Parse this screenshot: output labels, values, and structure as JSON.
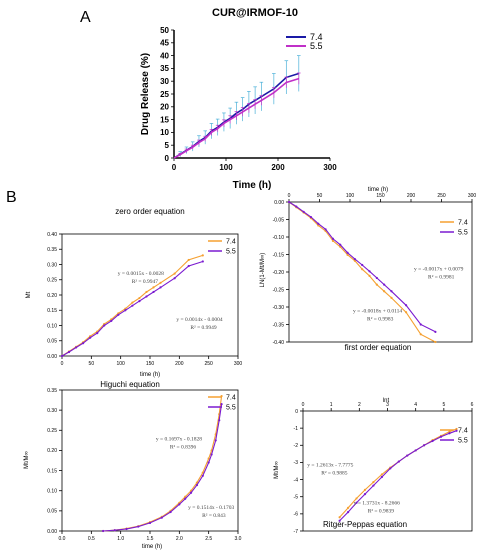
{
  "figure": {
    "label_a": "A",
    "label_b": "B"
  },
  "chart_data": [
    {
      "type": "line",
      "title": "CUR@IRMOF-10",
      "xlabel": "Time (h)",
      "ylabel": "Drug Release (%)",
      "xlim": [
        0,
        300
      ],
      "ylim": [
        0,
        50
      ],
      "xticks": [
        0,
        100,
        200,
        300
      ],
      "yticks": [
        0,
        5,
        10,
        15,
        20,
        25,
        30,
        35,
        40,
        45,
        50
      ],
      "error_bars": true,
      "legend": "top-right",
      "series": [
        {
          "name": "7.4",
          "color": "#1a1aa6",
          "x": [
            0,
            12,
            24,
            36,
            48,
            60,
            72,
            84,
            96,
            108,
            120,
            132,
            144,
            156,
            168,
            192,
            216,
            240
          ],
          "y": [
            0,
            1.5,
            3,
            4.5,
            6.5,
            8,
            10.5,
            12,
            14,
            15.5,
            17.5,
            19,
            21,
            22.5,
            24,
            27,
            31.5,
            33
          ],
          "err": [
            0,
            1,
            1.3,
            1.8,
            2.2,
            2.6,
            3,
            3.2,
            3.6,
            4,
            4.3,
            4.6,
            5,
            5.3,
            5.6,
            6,
            6.5,
            7
          ]
        },
        {
          "name": "5.5",
          "color": "#c030c8",
          "x": [
            0,
            12,
            24,
            36,
            48,
            60,
            72,
            84,
            96,
            108,
            120,
            132,
            144,
            156,
            168,
            192,
            216,
            240
          ],
          "y": [
            0,
            1.3,
            2.8,
            4.2,
            6,
            7.5,
            10,
            11.5,
            13.5,
            15,
            16.5,
            18,
            19.5,
            21,
            22.5,
            25.5,
            29.5,
            31
          ],
          "err": [
            0,
            0.5,
            0.7,
            0.8,
            1,
            1,
            1.2,
            1.3,
            1.4,
            1.5,
            1.6,
            1.7,
            1.8,
            1.8,
            1.9,
            2,
            2.1,
            2.2
          ]
        }
      ]
    },
    {
      "type": "line",
      "title": "zero order equation",
      "xlabel": "time (h)",
      "ylabel": "Mt",
      "xlim": [
        0,
        300
      ],
      "ylim": [
        0,
        0.4
      ],
      "xticks": [
        0,
        50,
        100,
        150,
        200,
        250,
        300
      ],
      "yticks": [
        0,
        0.05,
        0.1,
        0.15,
        0.2,
        0.25,
        0.3,
        0.35,
        0.4
      ],
      "ytick_labels": [
        "0.00",
        "0.05",
        "0.10",
        "0.15",
        "0.20",
        "0.25",
        "0.30",
        "0.35",
        "0.40"
      ],
      "legend": "top-right",
      "annotations": [
        {
          "lines": [
            "y = 0.0015x - 0.0028",
            "R² = 0.9947"
          ],
          "x": 95,
          "y": 0.265
        },
        {
          "lines": [
            "y = 0.0014x - 0.0004",
            "R² = 0.9949"
          ],
          "x": 195,
          "y": 0.115
        }
      ],
      "series": [
        {
          "name": "7.4",
          "color": "#f5a030",
          "x": [
            0,
            12,
            24,
            36,
            48,
            60,
            72,
            84,
            96,
            108,
            120,
            132,
            144,
            156,
            168,
            192,
            216,
            240
          ],
          "y": [
            0,
            0.015,
            0.03,
            0.045,
            0.065,
            0.08,
            0.105,
            0.12,
            0.14,
            0.155,
            0.175,
            0.19,
            0.21,
            0.225,
            0.24,
            0.27,
            0.315,
            0.33
          ]
        },
        {
          "name": "5.5",
          "color": "#7a1ad0",
          "x": [
            0,
            12,
            24,
            36,
            48,
            60,
            72,
            84,
            96,
            108,
            120,
            132,
            144,
            156,
            168,
            192,
            216,
            240
          ],
          "y": [
            0,
            0.013,
            0.028,
            0.042,
            0.06,
            0.075,
            0.1,
            0.115,
            0.135,
            0.15,
            0.165,
            0.18,
            0.195,
            0.21,
            0.225,
            0.255,
            0.295,
            0.31
          ]
        }
      ]
    },
    {
      "type": "line",
      "title": "first order equation",
      "xlabel": "time (h)",
      "ylabel": "LN(1-Mt/M∞)",
      "xlim": [
        0,
        300
      ],
      "ylim": [
        -0.4,
        0
      ],
      "xticks": [
        0,
        50,
        100,
        150,
        200,
        250,
        300
      ],
      "yticks": [
        0,
        -0.05,
        -0.1,
        -0.15,
        -0.2,
        -0.25,
        -0.3,
        -0.35,
        -0.4
      ],
      "ytick_labels": [
        "0.00",
        "-0.05",
        "-0.10",
        "-0.15",
        "-0.20",
        "-0.25",
        "-0.30",
        "-0.35",
        "-0.40"
      ],
      "x_axis_position": "top",
      "legend": "top-right",
      "annotations": [
        {
          "lines": [
            "y = -0.0017x + 0.0079",
            "R² = 0.9981"
          ],
          "x": 205,
          "y": -0.195
        },
        {
          "lines": [
            "y = -0.0018x + 0.0114",
            "R² = 0.9983"
          ],
          "x": 105,
          "y": -0.315
        }
      ],
      "series": [
        {
          "name": "7.4",
          "color": "#f5a030",
          "x": [
            0,
            12,
            24,
            36,
            48,
            60,
            72,
            84,
            96,
            108,
            120,
            132,
            144,
            156,
            168,
            192,
            216,
            240
          ],
          "y": [
            0,
            -0.015,
            -0.03,
            -0.046,
            -0.067,
            -0.083,
            -0.111,
            -0.128,
            -0.151,
            -0.168,
            -0.192,
            -0.211,
            -0.236,
            -0.255,
            -0.274,
            -0.315,
            -0.378,
            -0.4
          ]
        },
        {
          "name": "5.5",
          "color": "#7a1ad0",
          "x": [
            0,
            12,
            24,
            36,
            48,
            60,
            72,
            84,
            96,
            108,
            120,
            132,
            144,
            156,
            168,
            192,
            216,
            240
          ],
          "y": [
            0,
            -0.013,
            -0.028,
            -0.043,
            -0.062,
            -0.078,
            -0.105,
            -0.122,
            -0.145,
            -0.163,
            -0.18,
            -0.198,
            -0.217,
            -0.236,
            -0.255,
            -0.295,
            -0.35,
            -0.371
          ]
        }
      ]
    },
    {
      "type": "line",
      "title": "Higuchi equation",
      "xlabel": "time (h)",
      "ylabel": "Mt/M∞",
      "xlim": [
        0,
        3
      ],
      "ylim": [
        0,
        0.35
      ],
      "xticks": [
        0,
        0.5,
        1,
        1.5,
        2,
        2.5,
        3
      ],
      "xtick_labels": [
        "0.0",
        "0.5",
        "1.0",
        "1.5",
        "2.0",
        "2.5",
        "3.0"
      ],
      "yticks": [
        0,
        0.05,
        0.1,
        0.15,
        0.2,
        0.25,
        0.3,
        0.35
      ],
      "ytick_labels": [
        "0.00",
        "0.05",
        "0.10",
        "0.15",
        "0.20",
        "0.25",
        "0.30",
        "0.35"
      ],
      "legend": "top-right",
      "annotations": [
        {
          "lines": [
            "y = 0.1697x - 0.1828",
            "R² = 0.8396"
          ],
          "x": 1.6,
          "y": 0.225
        },
        {
          "lines": [
            "y = 0.1514x - 0.1703",
            "R² = 0.843"
          ],
          "x": 2.15,
          "y": 0.055
        }
      ],
      "series": [
        {
          "name": "7.4",
          "color": "#f5a030",
          "x": [
            0.7,
            0.9,
            1.1,
            1.3,
            1.5,
            1.7,
            1.85,
            2.0,
            2.1,
            2.2,
            2.3,
            2.4,
            2.5,
            2.55,
            2.62,
            2.68,
            2.72
          ],
          "y": [
            0,
            0.002,
            0.006,
            0.012,
            0.022,
            0.035,
            0.05,
            0.07,
            0.085,
            0.1,
            0.12,
            0.145,
            0.18,
            0.2,
            0.24,
            0.29,
            0.335
          ]
        },
        {
          "name": "5.5",
          "color": "#7a1ad0",
          "x": [
            0.7,
            0.9,
            1.1,
            1.3,
            1.5,
            1.7,
            1.85,
            2.0,
            2.1,
            2.2,
            2.3,
            2.4,
            2.5,
            2.55,
            2.62,
            2.68,
            2.72
          ],
          "y": [
            0,
            0.002,
            0.005,
            0.011,
            0.02,
            0.033,
            0.047,
            0.066,
            0.08,
            0.095,
            0.114,
            0.137,
            0.17,
            0.19,
            0.225,
            0.275,
            0.315
          ]
        }
      ]
    },
    {
      "type": "line",
      "title": "Ritger-Peppas equation",
      "xlabel": "lnt",
      "ylabel": "Mt/M∞",
      "xlim": [
        0,
        6
      ],
      "ylim": [
        -7,
        0
      ],
      "xticks": [
        0,
        1,
        2,
        3,
        4,
        5,
        6
      ],
      "yticks": [
        0,
        -1,
        -2,
        -3,
        -4,
        -5,
        -6,
        -7
      ],
      "x_axis_position": "top",
      "legend": "top-right",
      "annotations": [
        {
          "lines": [
            "y = 1.2613x - 7.7775",
            "R² = 0.9885"
          ],
          "x": 0.15,
          "y": -3.25
        },
        {
          "lines": [
            "y = 1.3731x - 8.2666",
            "R² = 0.9839"
          ],
          "x": 1.8,
          "y": -5.45
        }
      ],
      "series": [
        {
          "name": "7.4",
          "color": "#f5a030",
          "x": [
            1.3,
            1.6,
            1.9,
            2.2,
            2.5,
            2.8,
            3.1,
            3.4,
            3.7,
            4.0,
            4.3,
            4.6,
            4.9,
            5.2,
            5.45
          ],
          "y": [
            -6.2,
            -5.65,
            -5.1,
            -4.6,
            -4.15,
            -3.7,
            -3.3,
            -2.95,
            -2.6,
            -2.3,
            -2.0,
            -1.7,
            -1.45,
            -1.2,
            -1.05
          ]
        },
        {
          "name": "5.5",
          "color": "#7a1ad0",
          "x": [
            1.3,
            1.6,
            1.9,
            2.2,
            2.5,
            2.8,
            3.1,
            3.4,
            3.7,
            4.0,
            4.3,
            4.6,
            4.9,
            5.2,
            5.45
          ],
          "y": [
            -6.4,
            -5.9,
            -5.35,
            -4.85,
            -4.35,
            -3.85,
            -3.35,
            -2.95,
            -2.6,
            -2.3,
            -2.0,
            -1.75,
            -1.5,
            -1.3,
            -1.15
          ]
        }
      ]
    }
  ]
}
